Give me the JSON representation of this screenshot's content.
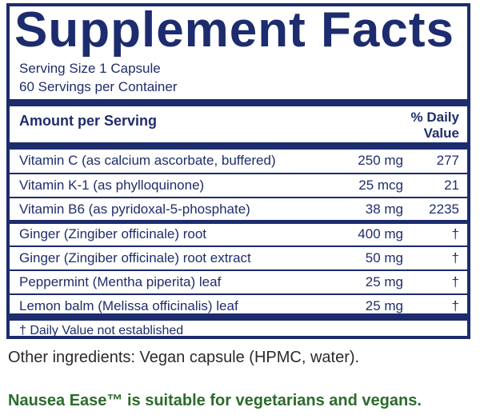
{
  "title": "Supplement Facts",
  "serving_size": "Serving Size 1 Capsule",
  "servings_per_container": "60 Servings per Container",
  "header": {
    "amount_per_serving": "Amount per Serving",
    "daily_value_line1": "% Daily",
    "daily_value_line2": "Value"
  },
  "rows": [
    {
      "name": "Vitamin C (as calcium ascorbate, buffered)",
      "amount": "250 mg",
      "dv": "277"
    },
    {
      "name": "Vitamin K-1 (as phylloquinone)",
      "amount": "25 mcg",
      "dv": "21"
    },
    {
      "name": "Vitamin B6 (as pyridoxal-5-phosphate)",
      "amount": "38 mg",
      "dv": "2235"
    },
    {
      "name": "Ginger (Zingiber officinale) root",
      "amount": "400 mg",
      "dv": "†"
    },
    {
      "name": "Ginger (Zingiber officinale) root extract",
      "amount": "50 mg",
      "dv": "†"
    },
    {
      "name": "Peppermint (Mentha piperita) leaf",
      "amount": "25 mg",
      "dv": "†"
    },
    {
      "name": "Lemon balm (Melissa officinalis) leaf",
      "amount": "25 mg",
      "dv": "†"
    }
  ],
  "footnote": "† Daily Value not established",
  "other_ingredients": "Other ingredients: Vegan capsule (HPMC, water).",
  "tagline": "Nausea Ease™ is suitable for vegetarians and vegans.",
  "colors": {
    "navy": "#1c2c6e",
    "green": "#2b6b2b"
  }
}
